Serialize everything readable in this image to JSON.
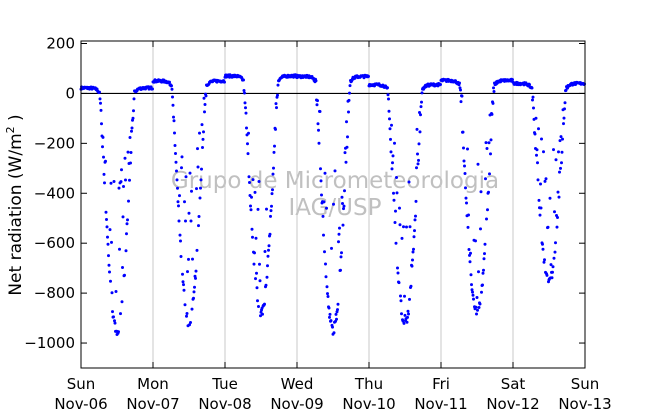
{
  "chart_data": {
    "type": "scatter",
    "ylabel_main": "Net radiation (W/m",
    "ylabel_sup": "2",
    "ylabel_close": " )",
    "ylim": [
      -1100,
      210
    ],
    "yticks": [
      200,
      0,
      -200,
      -400,
      -600,
      -800,
      -1000
    ],
    "ytick_labels": [
      "200",
      "0",
      "−200",
      "−400",
      "−600",
      "−800",
      "−1000"
    ],
    "xlim": [
      0,
      7
    ],
    "xticks": [
      {
        "day": "Sun",
        "date": "Nov-06"
      },
      {
        "day": "Mon",
        "date": "Nov-07"
      },
      {
        "day": "Tue",
        "date": "Nov-08"
      },
      {
        "day": "Wed",
        "date": "Nov-09"
      },
      {
        "day": "Thu",
        "date": "Nov-10"
      },
      {
        "day": "Fri",
        "date": "Nov-11"
      },
      {
        "day": "Sat",
        "date": "Nov-12"
      },
      {
        "day": "Sun",
        "date": "Nov-13"
      }
    ],
    "grid": "vertical",
    "zero_line": 0,
    "point_color": "#0000ff",
    "watermark": [
      "Grupo de Micrometeorologia",
      "IAG/USP"
    ],
    "days": [
      {
        "night_level": 22,
        "min": -955
      },
      {
        "night_level": 50,
        "min": -915
      },
      {
        "night_level": 70,
        "min": -880
      },
      {
        "night_level": 68,
        "min": -945
      },
      {
        "night_level": 35,
        "min": -920
      },
      {
        "night_level": 52,
        "min": -880
      },
      {
        "night_level": 40,
        "min": -760
      }
    ]
  }
}
